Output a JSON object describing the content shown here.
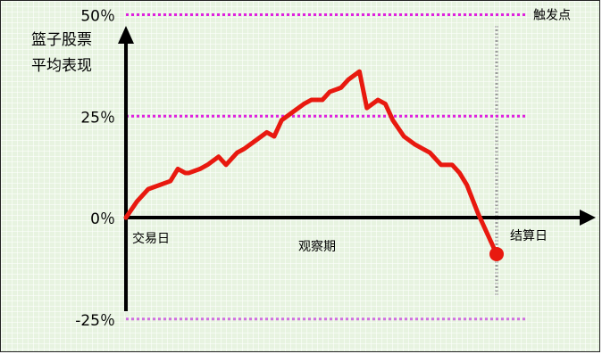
{
  "chart_data": {
    "type": "line",
    "ylabel_lines": [
      "篮子股票",
      "平均表现"
    ],
    "xlabel": "观察期",
    "x_start_label": "交易日",
    "x_end_label": "结算日",
    "ylim": [
      -40,
      75
    ],
    "yticks": [
      {
        "value": 50,
        "label": "50％"
      },
      {
        "value": 25,
        "label": "25％"
      },
      {
        "value": 0,
        "label": "0％"
      },
      {
        "value": -25,
        "label": "-25％"
      }
    ],
    "reference_lines": [
      {
        "value": 50,
        "label": "触发点",
        "color": "#e020e0"
      },
      {
        "value": 25,
        "label": "",
        "color": "#e020e0"
      },
      {
        "value": -25,
        "label": "",
        "color": "#d070e0"
      }
    ],
    "series": [
      {
        "color": "#e8190f",
        "x": [
          0,
          3,
          6,
          9,
          12,
          14,
          16,
          17,
          20,
          22,
          25,
          27,
          30,
          32,
          35,
          38,
          40,
          42,
          45,
          48,
          50,
          53,
          55,
          58,
          60,
          63,
          65,
          68,
          70,
          72,
          75,
          78,
          80,
          82,
          85,
          88,
          90,
          92,
          95,
          98,
          100
        ],
        "y": [
          0,
          4,
          7,
          8,
          9,
          12,
          11,
          11,
          12,
          13,
          15,
          13,
          16,
          17,
          19,
          21,
          20,
          24,
          26,
          28,
          29,
          29,
          31,
          32,
          34,
          36,
          27,
          29,
          28,
          24,
          20,
          18,
          17,
          16,
          13,
          13,
          11,
          8,
          1,
          -5,
          -9
        ]
      }
    ],
    "end_marker": {
      "x": 100,
      "y": -9
    }
  }
}
